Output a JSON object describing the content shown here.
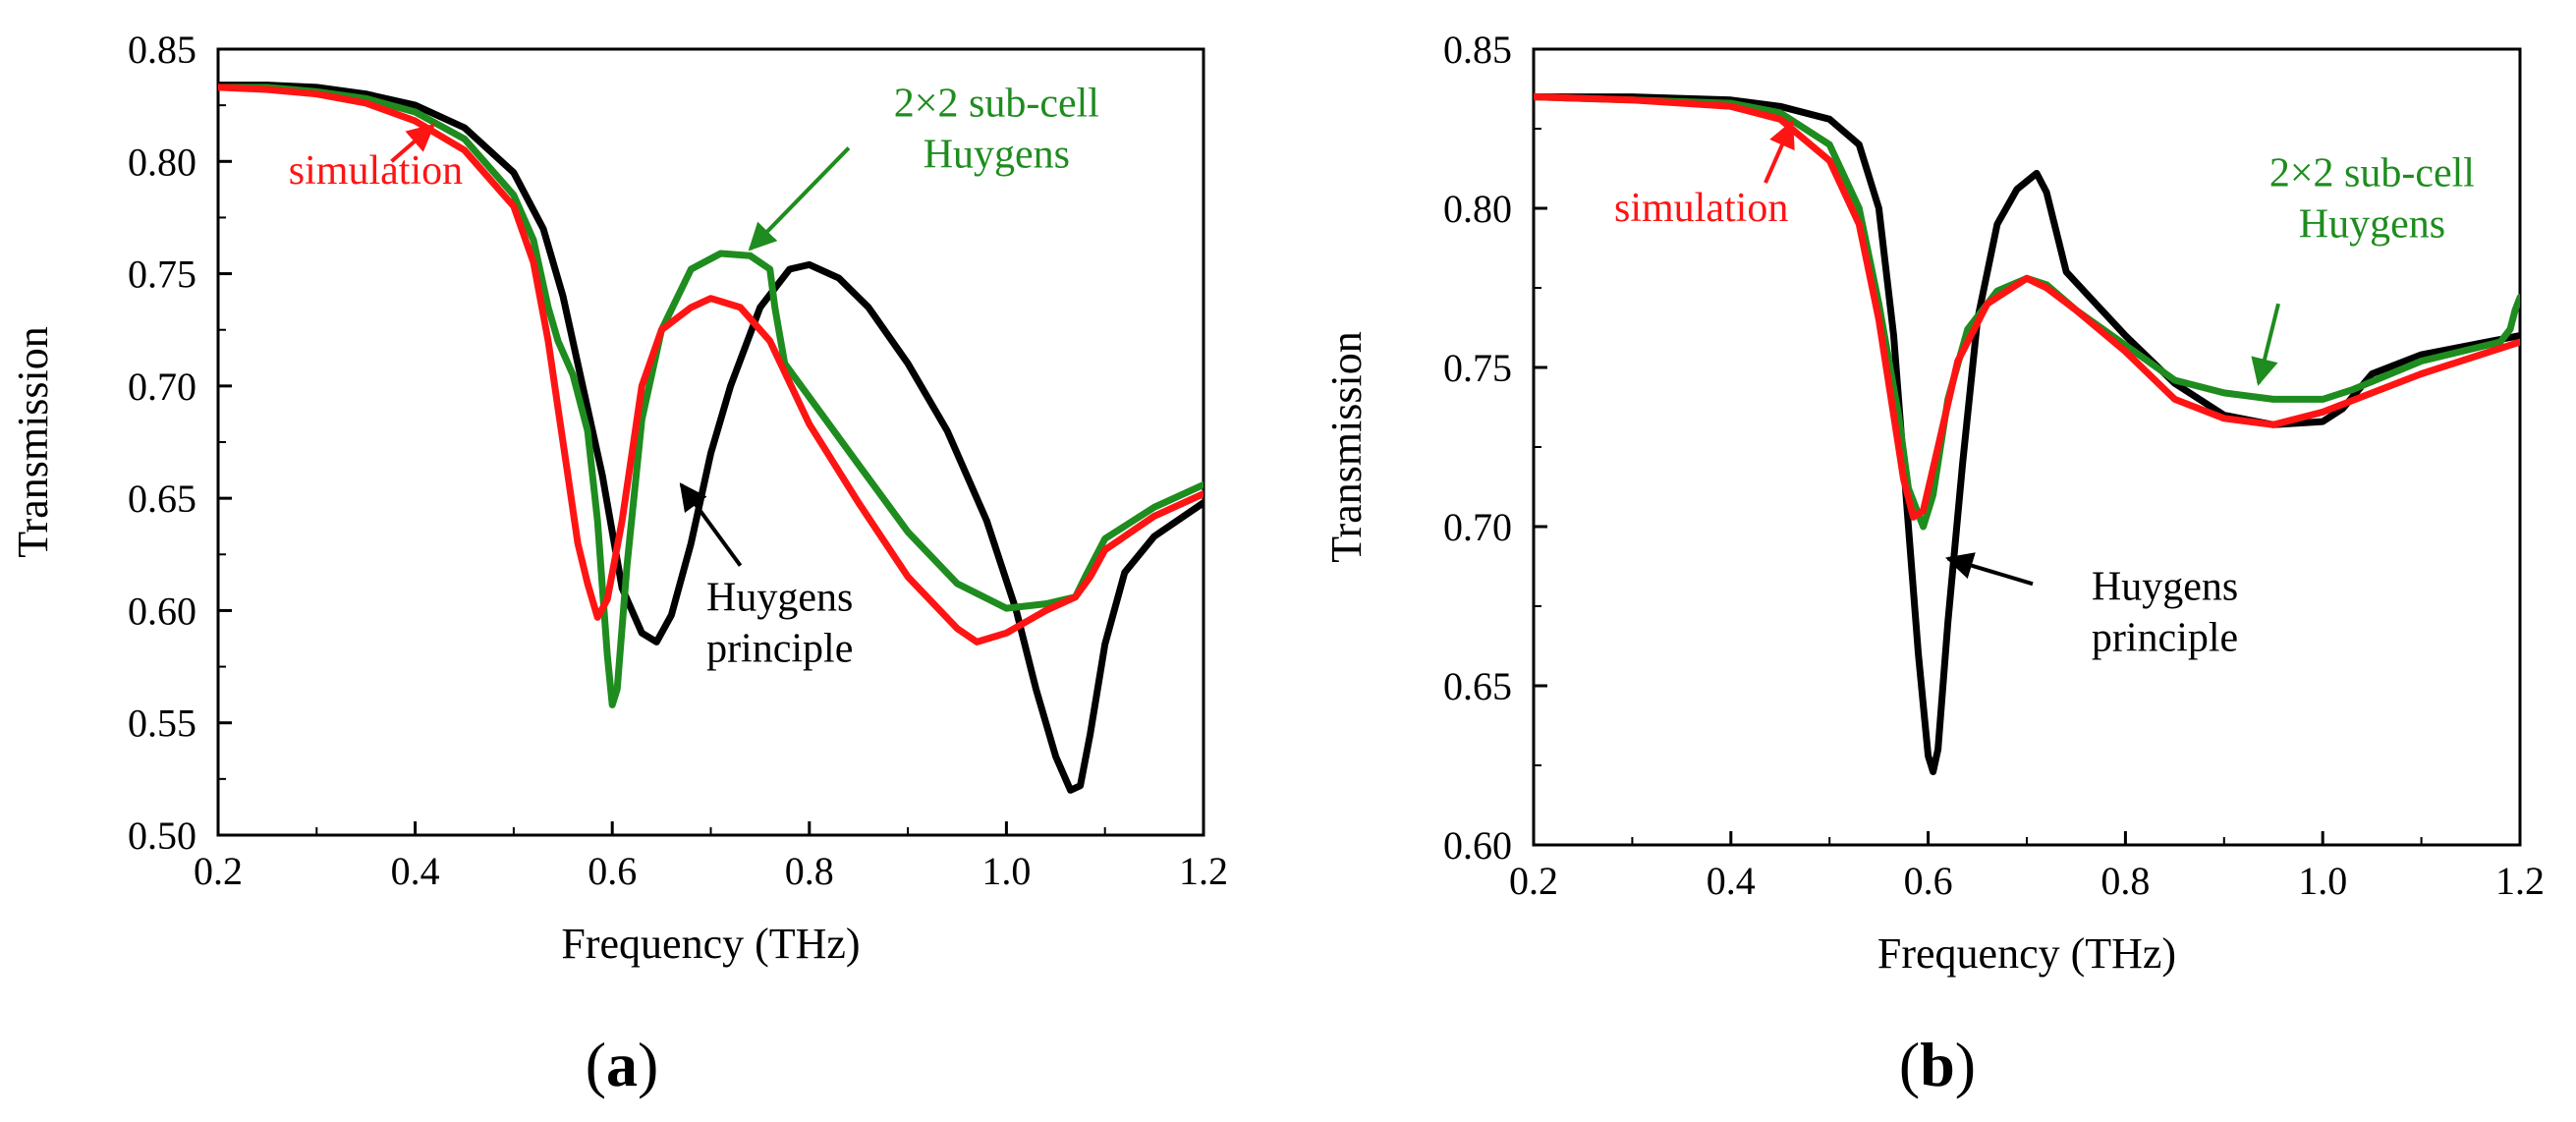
{
  "charts": [
    {
      "id": "a",
      "chart_data": {
        "type": "line",
        "title": "",
        "panel_label": "a",
        "xlabel": "Frequency (THz)",
        "ylabel": "Transmission",
        "xlim": [
          0.2,
          1.2
        ],
        "ylim": [
          0.5,
          0.85
        ],
        "xticks": [
          0.2,
          0.4,
          0.6,
          0.8,
          1.0,
          1.2
        ],
        "xtick_labels": [
          "0.2",
          "0.4",
          "0.6",
          "0.8",
          "1.0",
          "1.2"
        ],
        "yticks": [
          0.5,
          0.55,
          0.6,
          0.65,
          0.7,
          0.75,
          0.8,
          0.85
        ],
        "ytick_labels": [
          "0.50",
          "0.55",
          "0.60",
          "0.65",
          "0.70",
          "0.75",
          "0.80",
          "0.85"
        ],
        "grid": false,
        "series": [
          {
            "color": "#000000",
            "points": [
              [
                0.2,
                0.834
              ],
              [
                0.25,
                0.834
              ],
              [
                0.3,
                0.833
              ],
              [
                0.35,
                0.83
              ],
              [
                0.4,
                0.825
              ],
              [
                0.45,
                0.815
              ],
              [
                0.5,
                0.795
              ],
              [
                0.53,
                0.77
              ],
              [
                0.55,
                0.74
              ],
              [
                0.57,
                0.7
              ],
              [
                0.59,
                0.66
              ],
              [
                0.61,
                0.61
              ],
              [
                0.63,
                0.59
              ],
              [
                0.645,
                0.586
              ],
              [
                0.66,
                0.598
              ],
              [
                0.68,
                0.63
              ],
              [
                0.7,
                0.67
              ],
              [
                0.72,
                0.7
              ],
              [
                0.75,
                0.735
              ],
              [
                0.78,
                0.752
              ],
              [
                0.8,
                0.754
              ],
              [
                0.83,
                0.748
              ],
              [
                0.86,
                0.735
              ],
              [
                0.9,
                0.71
              ],
              [
                0.94,
                0.68
              ],
              [
                0.98,
                0.64
              ],
              [
                1.01,
                0.6
              ],
              [
                1.03,
                0.565
              ],
              [
                1.05,
                0.535
              ],
              [
                1.065,
                0.52
              ],
              [
                1.075,
                0.522
              ],
              [
                1.085,
                0.545
              ],
              [
                1.1,
                0.585
              ],
              [
                1.12,
                0.617
              ],
              [
                1.15,
                0.633
              ],
              [
                1.2,
                0.648
              ]
            ]
          },
          {
            "color": "#1e8c1e",
            "points": [
              [
                0.2,
                0.833
              ],
              [
                0.25,
                0.833
              ],
              [
                0.3,
                0.831
              ],
              [
                0.35,
                0.828
              ],
              [
                0.4,
                0.822
              ],
              [
                0.45,
                0.81
              ],
              [
                0.5,
                0.785
              ],
              [
                0.52,
                0.765
              ],
              [
                0.535,
                0.735
              ],
              [
                0.545,
                0.72
              ],
              [
                0.56,
                0.705
              ],
              [
                0.575,
                0.68
              ],
              [
                0.585,
                0.64
              ],
              [
                0.595,
                0.58
              ],
              [
                0.6,
                0.558
              ],
              [
                0.605,
                0.565
              ],
              [
                0.615,
                0.62
              ],
              [
                0.63,
                0.685
              ],
              [
                0.65,
                0.725
              ],
              [
                0.68,
                0.752
              ],
              [
                0.71,
                0.759
              ],
              [
                0.74,
                0.758
              ],
              [
                0.76,
                0.752
              ],
              [
                0.765,
                0.735
              ],
              [
                0.775,
                0.71
              ],
              [
                0.8,
                0.695
              ],
              [
                0.85,
                0.665
              ],
              [
                0.9,
                0.635
              ],
              [
                0.95,
                0.612
              ],
              [
                1.0,
                0.601
              ],
              [
                1.04,
                0.603
              ],
              [
                1.07,
                0.606
              ],
              [
                1.08,
                0.615
              ],
              [
                1.1,
                0.632
              ],
              [
                1.15,
                0.646
              ],
              [
                1.2,
                0.656
              ]
            ]
          },
          {
            "color": "#ff1414",
            "points": [
              [
                0.2,
                0.833
              ],
              [
                0.25,
                0.832
              ],
              [
                0.3,
                0.83
              ],
              [
                0.35,
                0.826
              ],
              [
                0.4,
                0.818
              ],
              [
                0.45,
                0.805
              ],
              [
                0.5,
                0.78
              ],
              [
                0.52,
                0.755
              ],
              [
                0.535,
                0.72
              ],
              [
                0.545,
                0.69
              ],
              [
                0.555,
                0.66
              ],
              [
                0.565,
                0.63
              ],
              [
                0.575,
                0.612
              ],
              [
                0.585,
                0.597
              ],
              [
                0.595,
                0.605
              ],
              [
                0.61,
                0.64
              ],
              [
                0.63,
                0.7
              ],
              [
                0.65,
                0.725
              ],
              [
                0.68,
                0.735
              ],
              [
                0.7,
                0.739
              ],
              [
                0.73,
                0.735
              ],
              [
                0.76,
                0.72
              ],
              [
                0.8,
                0.683
              ],
              [
                0.85,
                0.648
              ],
              [
                0.9,
                0.615
              ],
              [
                0.95,
                0.592
              ],
              [
                0.97,
                0.586
              ],
              [
                1.0,
                0.59
              ],
              [
                1.04,
                0.6
              ],
              [
                1.07,
                0.606
              ],
              [
                1.085,
                0.615
              ],
              [
                1.1,
                0.627
              ],
              [
                1.15,
                0.642
              ],
              [
                1.2,
                0.652
              ]
            ]
          }
        ],
        "annotations": [
          {
            "lines": [
              "simulation"
            ],
            "color": "#ff1414",
            "at": [
              0.36,
              0.79
            ],
            "anchor": "middle",
            "arrow_from": [
              0.376,
              0.8
            ],
            "arrow_to": [
              0.418,
              0.816
            ]
          },
          {
            "lines": [
              "2×2 sub-cell",
              "Huygens"
            ],
            "color": "#1e8c1e",
            "at": [
              0.99,
              0.82
            ],
            "anchor": "middle",
            "arrow_from": [
              0.84,
              0.806
            ],
            "arrow_to": [
              0.74,
              0.761
            ]
          },
          {
            "lines": [
              "Huygens",
              "principle"
            ],
            "color": "#000000",
            "at": [
              0.77,
              0.6
            ],
            "anchor": "middle",
            "arrow_from": [
              0.73,
              0.62
            ],
            "arrow_to": [
              0.67,
              0.656
            ]
          }
        ]
      }
    },
    {
      "id": "b",
      "chart_data": {
        "type": "line",
        "title": "",
        "panel_label": "b",
        "xlabel": "Frequency (THz)",
        "ylabel": "Transmission",
        "xlim": [
          0.2,
          1.2
        ],
        "ylim": [
          0.6,
          0.85
        ],
        "xticks": [
          0.2,
          0.4,
          0.6,
          0.8,
          1.0,
          1.2
        ],
        "xtick_labels": [
          "0.2",
          "0.4",
          "0.6",
          "0.8",
          "1.0",
          "1.2"
        ],
        "yticks": [
          0.6,
          0.65,
          0.7,
          0.75,
          0.8,
          0.85
        ],
        "ytick_labels": [
          "0.60",
          "0.65",
          "0.70",
          "0.75",
          "0.80",
          "0.85"
        ],
        "grid": false,
        "series": [
          {
            "color": "#000000",
            "points": [
              [
                0.2,
                0.835
              ],
              [
                0.3,
                0.835
              ],
              [
                0.4,
                0.834
              ],
              [
                0.45,
                0.832
              ],
              [
                0.5,
                0.828
              ],
              [
                0.53,
                0.82
              ],
              [
                0.55,
                0.8
              ],
              [
                0.565,
                0.76
              ],
              [
                0.58,
                0.7
              ],
              [
                0.59,
                0.66
              ],
              [
                0.6,
                0.628
              ],
              [
                0.605,
                0.623
              ],
              [
                0.61,
                0.63
              ],
              [
                0.62,
                0.67
              ],
              [
                0.635,
                0.72
              ],
              [
                0.65,
                0.765
              ],
              [
                0.67,
                0.795
              ],
              [
                0.69,
                0.806
              ],
              [
                0.71,
                0.811
              ],
              [
                0.72,
                0.805
              ],
              [
                0.74,
                0.78
              ],
              [
                0.77,
                0.77
              ],
              [
                0.8,
                0.76
              ],
              [
                0.85,
                0.745
              ],
              [
                0.9,
                0.735
              ],
              [
                0.95,
                0.732
              ],
              [
                1.0,
                0.733
              ],
              [
                1.02,
                0.737
              ],
              [
                1.05,
                0.748
              ],
              [
                1.1,
                0.754
              ],
              [
                1.2,
                0.76
              ]
            ]
          },
          {
            "color": "#1e8c1e",
            "points": [
              [
                0.2,
                0.835
              ],
              [
                0.3,
                0.834
              ],
              [
                0.4,
                0.833
              ],
              [
                0.45,
                0.83
              ],
              [
                0.5,
                0.82
              ],
              [
                0.53,
                0.8
              ],
              [
                0.55,
                0.77
              ],
              [
                0.57,
                0.735
              ],
              [
                0.58,
                0.712
              ],
              [
                0.595,
                0.7
              ],
              [
                0.605,
                0.71
              ],
              [
                0.62,
                0.74
              ],
              [
                0.64,
                0.762
              ],
              [
                0.67,
                0.774
              ],
              [
                0.7,
                0.778
              ],
              [
                0.72,
                0.776
              ],
              [
                0.75,
                0.768
              ],
              [
                0.8,
                0.757
              ],
              [
                0.85,
                0.746
              ],
              [
                0.9,
                0.742
              ],
              [
                0.95,
                0.74
              ],
              [
                1.0,
                0.74
              ],
              [
                1.03,
                0.743
              ],
              [
                1.1,
                0.752
              ],
              [
                1.18,
                0.758
              ],
              [
                1.19,
                0.762
              ],
              [
                1.195,
                0.768
              ],
              [
                1.2,
                0.772
              ]
            ]
          },
          {
            "color": "#ff1414",
            "points": [
              [
                0.2,
                0.835
              ],
              [
                0.3,
                0.834
              ],
              [
                0.4,
                0.832
              ],
              [
                0.45,
                0.828
              ],
              [
                0.5,
                0.815
              ],
              [
                0.53,
                0.795
              ],
              [
                0.55,
                0.765
              ],
              [
                0.565,
                0.735
              ],
              [
                0.575,
                0.715
              ],
              [
                0.585,
                0.703
              ],
              [
                0.595,
                0.705
              ],
              [
                0.61,
                0.725
              ],
              [
                0.63,
                0.752
              ],
              [
                0.66,
                0.77
              ],
              [
                0.7,
                0.778
              ],
              [
                0.72,
                0.775
              ],
              [
                0.75,
                0.768
              ],
              [
                0.8,
                0.755
              ],
              [
                0.85,
                0.74
              ],
              [
                0.9,
                0.734
              ],
              [
                0.95,
                0.732
              ],
              [
                1.0,
                0.736
              ],
              [
                1.05,
                0.742
              ],
              [
                1.1,
                0.748
              ],
              [
                1.2,
                0.758
              ]
            ]
          }
        ],
        "annotations": [
          {
            "lines": [
              "simulation"
            ],
            "color": "#ff1414",
            "at": [
              0.37,
              0.796
            ],
            "anchor": "middle",
            "arrow_from": [
              0.435,
              0.808
            ],
            "arrow_to": [
              0.462,
              0.827
            ]
          },
          {
            "lines": [
              "2×2 sub-cell",
              "Huygens"
            ],
            "color": "#1e8c1e",
            "at": [
              1.05,
              0.807
            ],
            "anchor": "middle",
            "arrow_from": [
              0.955,
              0.77
            ],
            "arrow_to": [
              0.935,
              0.745
            ]
          },
          {
            "lines": [
              "Huygens",
              "principle"
            ],
            "color": "#000000",
            "at": [
              0.84,
              0.677
            ],
            "anchor": "middle",
            "arrow_from": [
              0.706,
              0.682
            ],
            "arrow_to": [
              0.62,
              0.69
            ]
          }
        ]
      }
    }
  ]
}
